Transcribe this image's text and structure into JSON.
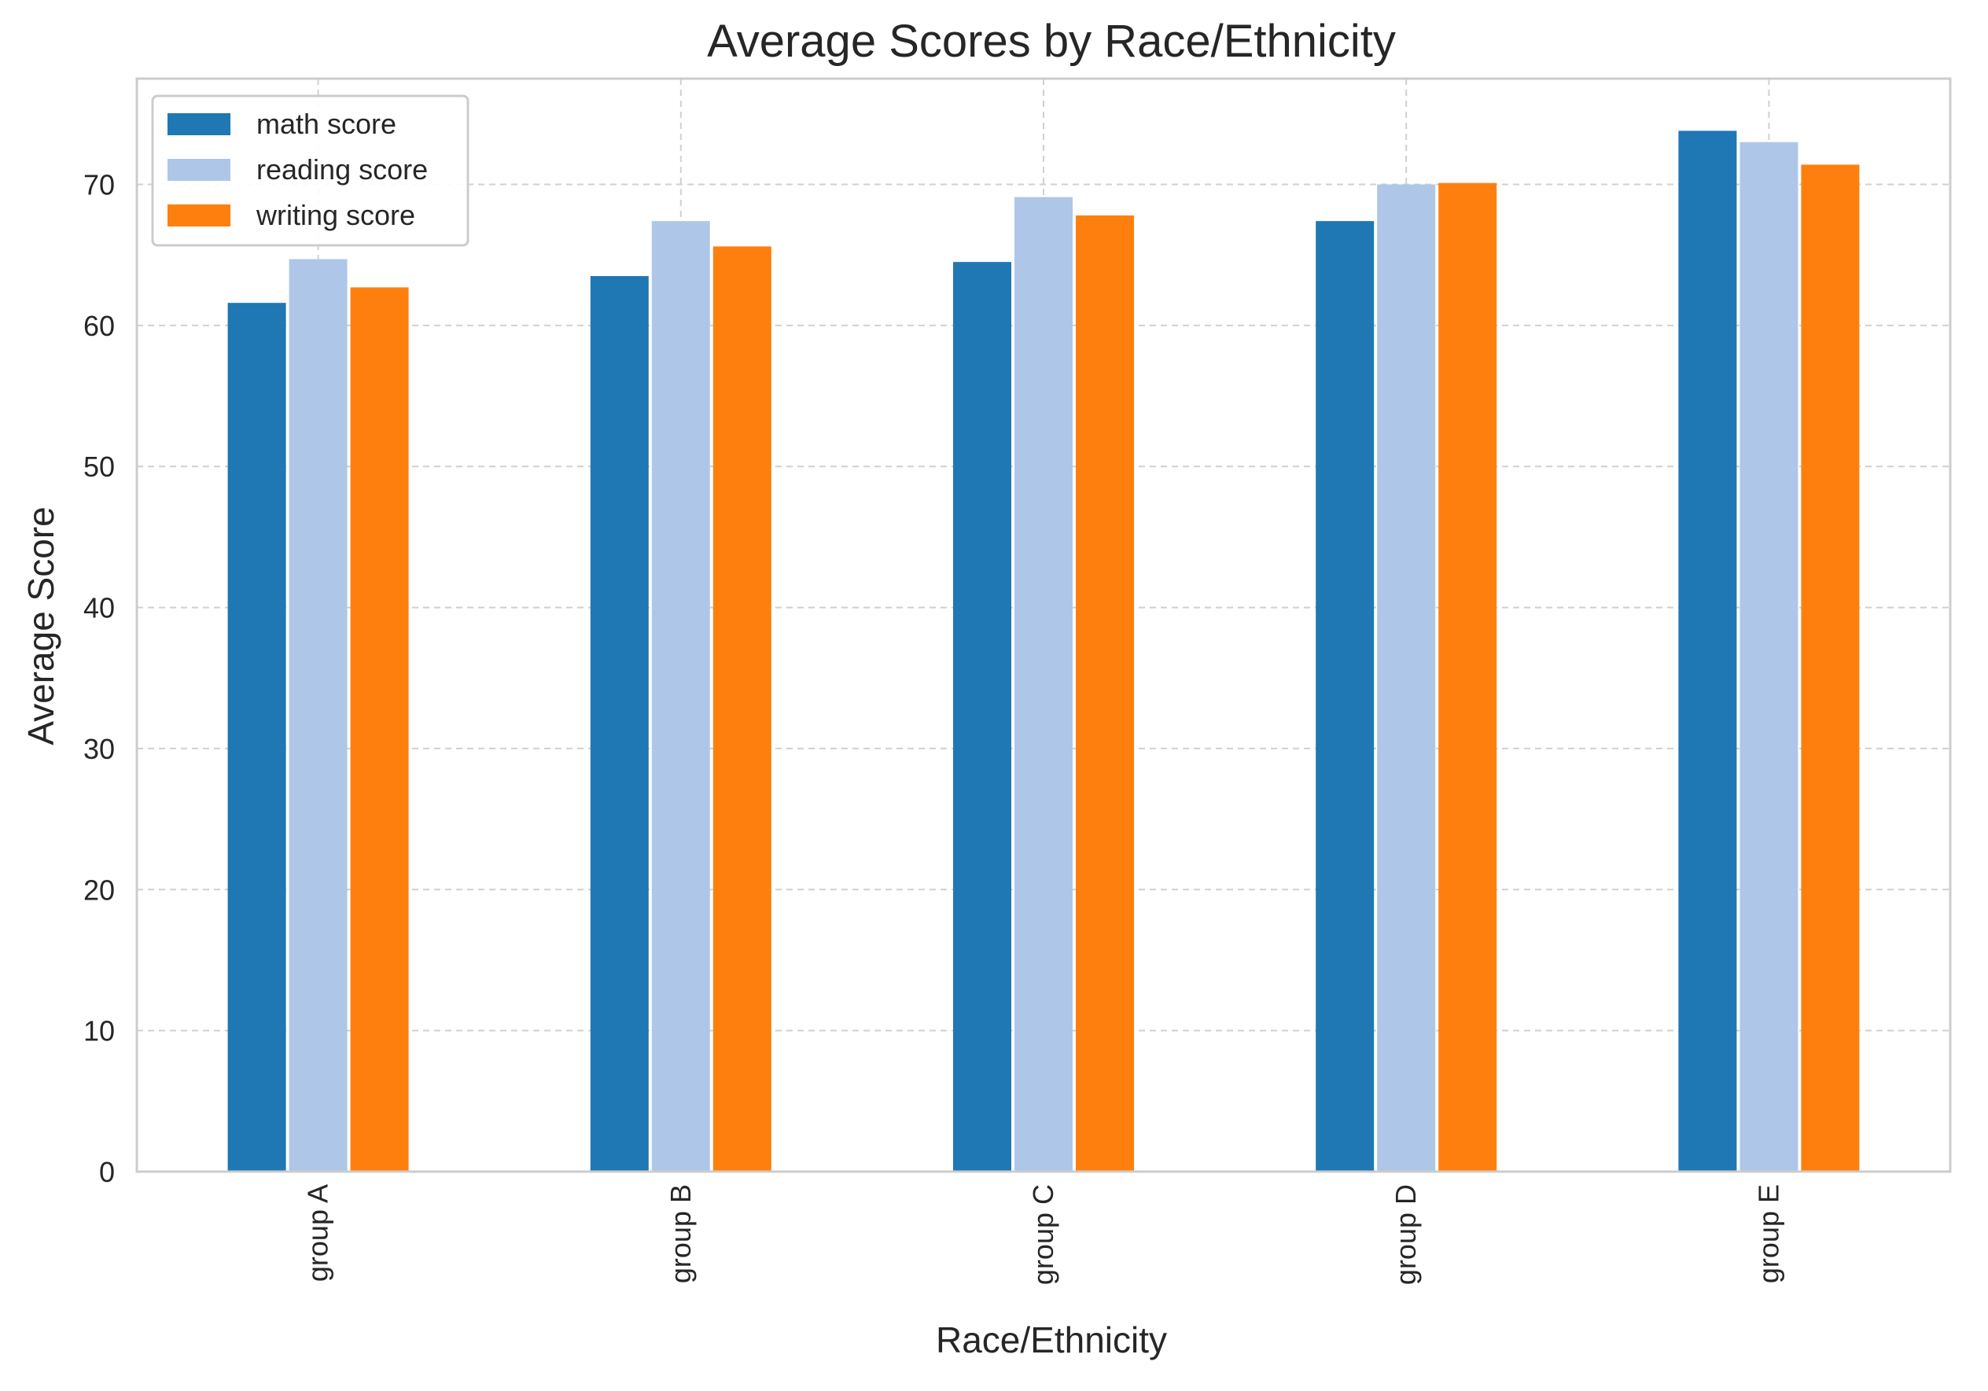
{
  "chart_data": {
    "type": "bar",
    "title": "Average Scores by Race/Ethnicity",
    "xlabel": "Race/Ethnicity",
    "ylabel": "Average Score",
    "categories": [
      "group A",
      "group B",
      "group C",
      "group D",
      "group E"
    ],
    "series": [
      {
        "name": "math score",
        "color": "#1f77b4",
        "values": [
          61.6,
          63.5,
          64.5,
          67.4,
          73.8
        ]
      },
      {
        "name": "reading score",
        "color": "#aec7e8",
        "values": [
          64.7,
          67.4,
          69.1,
          70.0,
          73.0
        ]
      },
      {
        "name": "writing score",
        "color": "#ff7f0e",
        "values": [
          62.7,
          65.6,
          67.8,
          70.1,
          71.4
        ]
      }
    ],
    "ylim": [
      0,
      77.5
    ],
    "yticks": [
      0,
      10,
      20,
      30,
      40,
      50,
      60,
      70
    ],
    "grid": true,
    "legend_position": "top-left",
    "xtick_rotation": "vertical"
  }
}
